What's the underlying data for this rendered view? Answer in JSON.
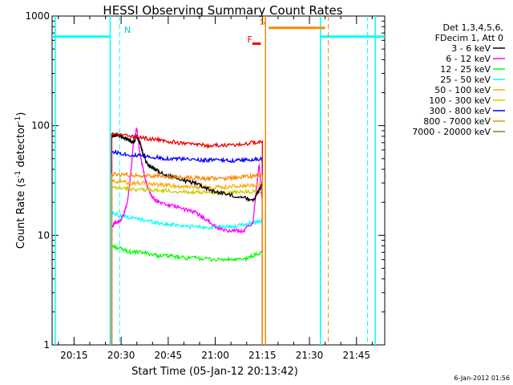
{
  "chart_data": {
    "type": "line",
    "title": "HESSI Observing Summary Count Rates",
    "xlabel": "Start Time (05-Jan-12 20:13:42)",
    "ylabel_main": "Count Rate (s",
    "ylabel_sup1": "-1",
    "ylabel_mid": " detector",
    "ylabel_sup2": "-1",
    "ylabel_end": ")",
    "y_scale": "log",
    "ylim": [
      1,
      1000
    ],
    "xlim_minutes": [
      -7,
      99
    ],
    "x_ticks": [
      {
        "minute": 0,
        "label": "20:15"
      },
      {
        "minute": 15,
        "label": "20:30"
      },
      {
        "minute": 30,
        "label": "20:45"
      },
      {
        "minute": 45,
        "label": "21:00"
      },
      {
        "minute": 60,
        "label": "21:15"
      },
      {
        "minute": 75,
        "label": "21:30"
      },
      {
        "minute": 90,
        "label": "21:45"
      }
    ],
    "y_ticks": [
      {
        "value": 1,
        "label": "1"
      },
      {
        "value": 10,
        "label": "10"
      },
      {
        "value": 100,
        "label": "100"
      },
      {
        "value": 1000,
        "label": "1000"
      }
    ],
    "legend_header": [
      "Det 1,3,4,5,6,",
      "FDecim 1, Att 0"
    ],
    "legend_placement": "right",
    "footer_date": "6-Jan-2012 01:56",
    "series": [
      {
        "name": "3 - 6 keV",
        "color": "#000000",
        "x": [
          12,
          13,
          14,
          15,
          16,
          17,
          18,
          19,
          20,
          21,
          22,
          23,
          24,
          25,
          27,
          30,
          33,
          36,
          39,
          42,
          45,
          48,
          51,
          54,
          57,
          58,
          59,
          60
        ],
        "y": [
          80,
          82,
          82,
          80,
          78,
          76,
          72,
          70,
          80,
          70,
          55,
          47,
          43,
          41,
          38,
          35,
          33,
          31,
          30,
          27,
          25,
          24,
          23,
          22,
          21,
          23,
          26,
          30
        ]
      },
      {
        "name": "6 - 12 keV",
        "color": "#ff00ff",
        "x": [
          12,
          13,
          14,
          15,
          16,
          17,
          18,
          19,
          20,
          21,
          22,
          23,
          24,
          25,
          27,
          30,
          33,
          36,
          39,
          42,
          45,
          48,
          51,
          54,
          57,
          58,
          59,
          60
        ],
        "y": [
          12,
          13,
          13,
          14,
          16,
          20,
          35,
          75,
          95,
          55,
          40,
          30,
          25,
          22,
          20,
          19,
          18,
          17,
          16,
          14,
          12,
          11,
          11,
          11,
          13,
          25,
          45,
          20
        ]
      },
      {
        "name": "12 - 25 keV",
        "color": "#00ff00",
        "x": [
          12,
          15,
          18,
          21,
          24,
          27,
          30,
          33,
          36,
          39,
          42,
          45,
          48,
          51,
          54,
          57,
          60
        ],
        "y": [
          8,
          7.5,
          7,
          7,
          6.8,
          6.5,
          6.5,
          6.3,
          6.2,
          6.2,
          6.1,
          6,
          6,
          6,
          6,
          6.5,
          7
        ]
      },
      {
        "name": "25 - 50 keV",
        "color": "#00ffff",
        "x": [
          12,
          15,
          18,
          21,
          24,
          27,
          30,
          33,
          36,
          39,
          42,
          45,
          48,
          51,
          54,
          57,
          60
        ],
        "y": [
          16,
          15,
          14.5,
          14,
          13.5,
          13,
          12.5,
          12.5,
          12,
          12,
          11.8,
          11.8,
          12,
          12,
          12.5,
          13,
          13.5
        ]
      },
      {
        "name": "50 - 100 keV",
        "color": "#ffaa00",
        "x": [
          12,
          15,
          18,
          21,
          24,
          27,
          30,
          33,
          36,
          39,
          42,
          45,
          48,
          51,
          54,
          57,
          60
        ],
        "y": [
          31,
          31,
          30,
          30,
          29.5,
          29,
          28.5,
          28,
          28,
          27.5,
          27.5,
          27.5,
          27.5,
          28,
          28,
          28.5,
          29
        ]
      },
      {
        "name": "100 - 300 keV",
        "color": "#cccc00",
        "x": [
          12,
          15,
          18,
          21,
          24,
          27,
          30,
          33,
          36,
          39,
          42,
          45,
          48,
          51,
          54,
          57,
          60
        ],
        "y": [
          27,
          27,
          26.5,
          26,
          26,
          25.5,
          25.5,
          25,
          25,
          24.5,
          24.5,
          24.5,
          24.5,
          24.5,
          25,
          25,
          25.5
        ]
      },
      {
        "name": "300 - 800 keV",
        "color": "#0000ff",
        "x": [
          12,
          15,
          18,
          21,
          24,
          27,
          30,
          33,
          36,
          39,
          42,
          45,
          48,
          51,
          54,
          57,
          60
        ],
        "y": [
          58,
          56,
          54,
          53,
          52,
          51,
          50,
          50,
          49,
          49,
          48.5,
          48.5,
          48,
          48,
          48.5,
          49,
          49.5
        ]
      },
      {
        "name": "800 - 7000 keV",
        "color": "#ff8800",
        "x": [],
        "y": []
      },
      {
        "name": "7000 - 20000 keV",
        "color": "#888800",
        "x": [],
        "y": []
      }
    ],
    "extra_series": [
      {
        "color": "#ee0000",
        "x": [
          12,
          15,
          18,
          21,
          24,
          27,
          30,
          33,
          36,
          39,
          42,
          45,
          48,
          51,
          54,
          57,
          60
        ],
        "y": [
          84,
          82,
          80,
          78,
          76,
          74,
          72,
          70,
          68,
          67,
          66,
          66,
          66,
          67,
          68,
          70,
          72
        ]
      },
      {
        "color": "#ff8800",
        "x": [
          12,
          15,
          18,
          21,
          24,
          27,
          30,
          33,
          36,
          39,
          42,
          45,
          48,
          51,
          54,
          57,
          60
        ],
        "y": [
          36,
          36,
          35.5,
          35,
          35,
          34.5,
          34,
          34,
          33.5,
          33.5,
          33,
          33,
          33,
          33.5,
          34,
          34.5,
          35
        ]
      }
    ],
    "night_segments": [
      {
        "x0": -7,
        "x1": 11.5,
        "y": 650
      },
      {
        "x0": 78.5,
        "x1": 99,
        "y": 650
      }
    ],
    "night_boundaries": [
      -6,
      11.5,
      78.5,
      96
    ],
    "night_dashed": [
      14.5,
      93.5
    ],
    "night_label": {
      "text": "N",
      "minute": 16,
      "y": 700
    },
    "saa_segment": {
      "x0": 62,
      "x1": 80,
      "y": 780
    },
    "saa_boundaries_solid": [
      61
    ],
    "saa_boundaries_dashed": [
      81
    ],
    "saa_label": {
      "text": "S",
      "minute": 59.2,
      "y": 830
    },
    "flare_segment": {
      "x0": 56.8,
      "x1": 59.5,
      "y": 560
    },
    "flare_label": {
      "text": "F",
      "minute": 55.2,
      "y": 575
    },
    "spike_minute": 11.8
  }
}
